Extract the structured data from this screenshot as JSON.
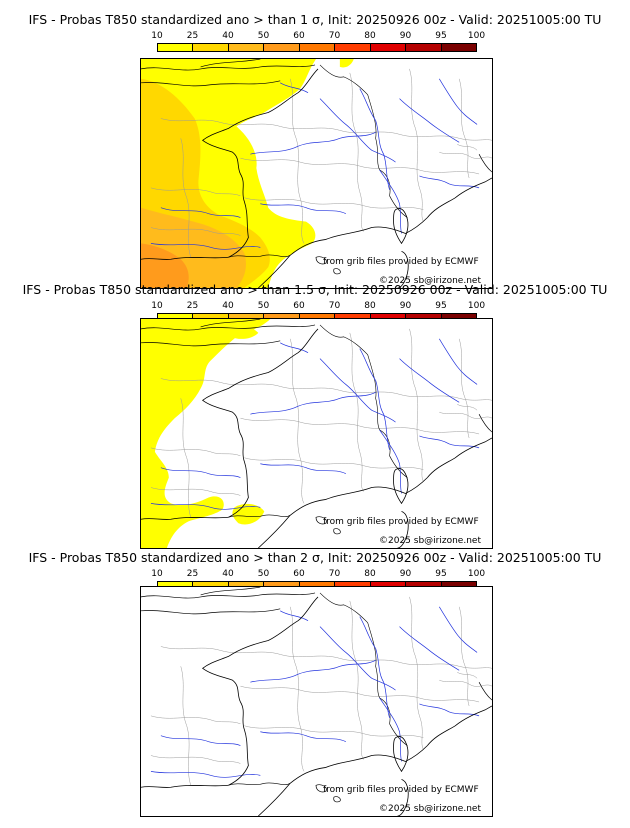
{
  "legend": {
    "ticks": [
      "10",
      "25",
      "40",
      "50",
      "60",
      "70",
      "80",
      "90",
      "95",
      "100"
    ],
    "colors": [
      "#ffff00",
      "#ffd800",
      "#ffbb1c",
      "#ff9b1c",
      "#ff7800",
      "#ff3c00",
      "#e00000",
      "#b40000",
      "#7a0000"
    ]
  },
  "panels": [
    {
      "title": "IFS - Probas T850  standardized ano > than 1 σ, Init: 20250926 00z - Valid: 20251005:00 TU",
      "source": "from grib files provided by ECMWF",
      "copyright": "©2025 sb@irizone.net"
    },
    {
      "title": "IFS - Probas T850  standardized ano > than 1.5 σ, Init: 20250926 00z - Valid: 20251005:00 TU",
      "source": "from grib files provided by ECMWF",
      "copyright": "©2025 sb@irizone.net"
    },
    {
      "title": "IFS - Probas T850  standardized ano > than 2 σ, Init: 20250926 00z - Valid: 20251005:00 TU",
      "source": "from grib files provided by ECMWF",
      "copyright": "©2025 sb@irizone.net"
    }
  ],
  "palette": {
    "coast": "#000000",
    "borders": "#9a9a9a",
    "rivers": "#2233dd",
    "prob_low": "#ffff00",
    "prob_mid": "#ffd800",
    "prob_high": "#ffbb1c",
    "prob_peak": "#ff9b1c"
  }
}
